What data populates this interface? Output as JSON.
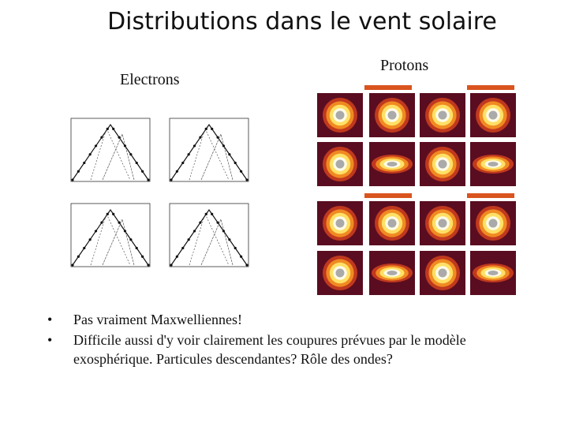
{
  "title": "Distributions dans le vent solaire",
  "labels": {
    "electrons": "Electrons",
    "protons": "Protons"
  },
  "bullets": [
    "Pas vraiment Maxwelliennes!",
    "Difficile aussi d'y voir clairement les coupures prévues par le modèle exosphérique. Particules descendantes? Rôle des ondes?"
  ]
}
